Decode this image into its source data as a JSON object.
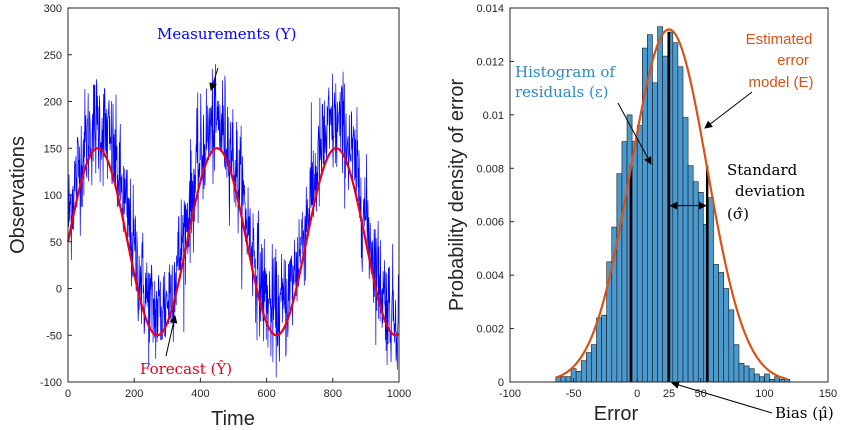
{
  "chart_data": [
    {
      "type": "line",
      "xlabel": "Time",
      "ylabel": "Observations",
      "xlim": [
        0,
        1000
      ],
      "ylim": [
        -100,
        300
      ],
      "xticks": [
        0,
        200,
        400,
        600,
        800,
        1000
      ],
      "yticks": [
        -100,
        -50,
        0,
        50,
        100,
        150,
        200,
        250,
        300
      ],
      "series": [
        {
          "name": "Measurements (Y)",
          "color": "#0000ff",
          "model": "noisy sinusoid around forecast, mean offset ~ +25, spread ~ ±40",
          "points": 1000
        },
        {
          "name": "Forecast (Ŷ)",
          "color": "#e8001c",
          "x": [
            0,
            90,
            270,
            450,
            630,
            810,
            990,
            1000
          ],
          "y": [
            50,
            150,
            -50,
            150,
            -50,
            150,
            -50,
            -49
          ]
        }
      ],
      "annotations": [
        {
          "text": "Measurements (Y)",
          "color": "#0000ff",
          "target_x": 450,
          "target_y": 205
        },
        {
          "text": "Forecast (Ŷ)",
          "color": "#e8001c",
          "target_x": 292,
          "target_y": -28
        }
      ]
    },
    {
      "type": "bar",
      "xlabel": "Error",
      "ylabel": "Probability density of error",
      "xlim": [
        -100,
        150
      ],
      "ylim": [
        0,
        0.014
      ],
      "xticks": [
        -100,
        -50,
        0,
        25,
        50,
        100,
        150
      ],
      "yticks": [
        0,
        0.002,
        0.004,
        0.006,
        0.008,
        0.01,
        0.012,
        0.014
      ],
      "bin_width": 4,
      "bin_start": -64,
      "values": [
        0.0002,
        0.0002,
        0.0002,
        0.0005,
        0.0004,
        0.0008,
        0.0011,
        0.0014,
        0.0024,
        0.0025,
        0.0045,
        0.0058,
        0.0078,
        0.009,
        0.01,
        0.009,
        0.0096,
        0.0125,
        0.013,
        0.0112,
        0.0133,
        0.0122,
        0.0131,
        0.0127,
        0.0118,
        0.0099,
        0.0081,
        0.0075,
        0.0071,
        0.0059,
        0.0069,
        0.0044,
        0.0041,
        0.0035,
        0.0027,
        0.0014,
        0.0007,
        0.0006,
        0.0005,
        0.0003,
        0.0002,
        0.0003,
        0.0001,
        0.0002,
        0.0001,
        0.0001
      ],
      "bar_color": "#4a9ad0",
      "model_curve": {
        "name": "Estimated error model (E)",
        "color": "#d95319",
        "mean": 25,
        "sd": 30
      },
      "vertical_lines": [
        -5,
        25,
        55
      ],
      "annotations": [
        {
          "text_lines": [
            "Histogram of",
            "residuals (ε)"
          ],
          "color": "#2b8ac7"
        },
        {
          "text_lines": [
            "Estimated",
            "error",
            "model (E)"
          ],
          "color": "#d95319"
        },
        {
          "text_lines": [
            "Standard",
            "deviation",
            "(σ̂)"
          ],
          "color": "#000000"
        },
        {
          "text_lines": [
            "Bias (μ̂)"
          ],
          "color": "#000000"
        }
      ]
    }
  ]
}
